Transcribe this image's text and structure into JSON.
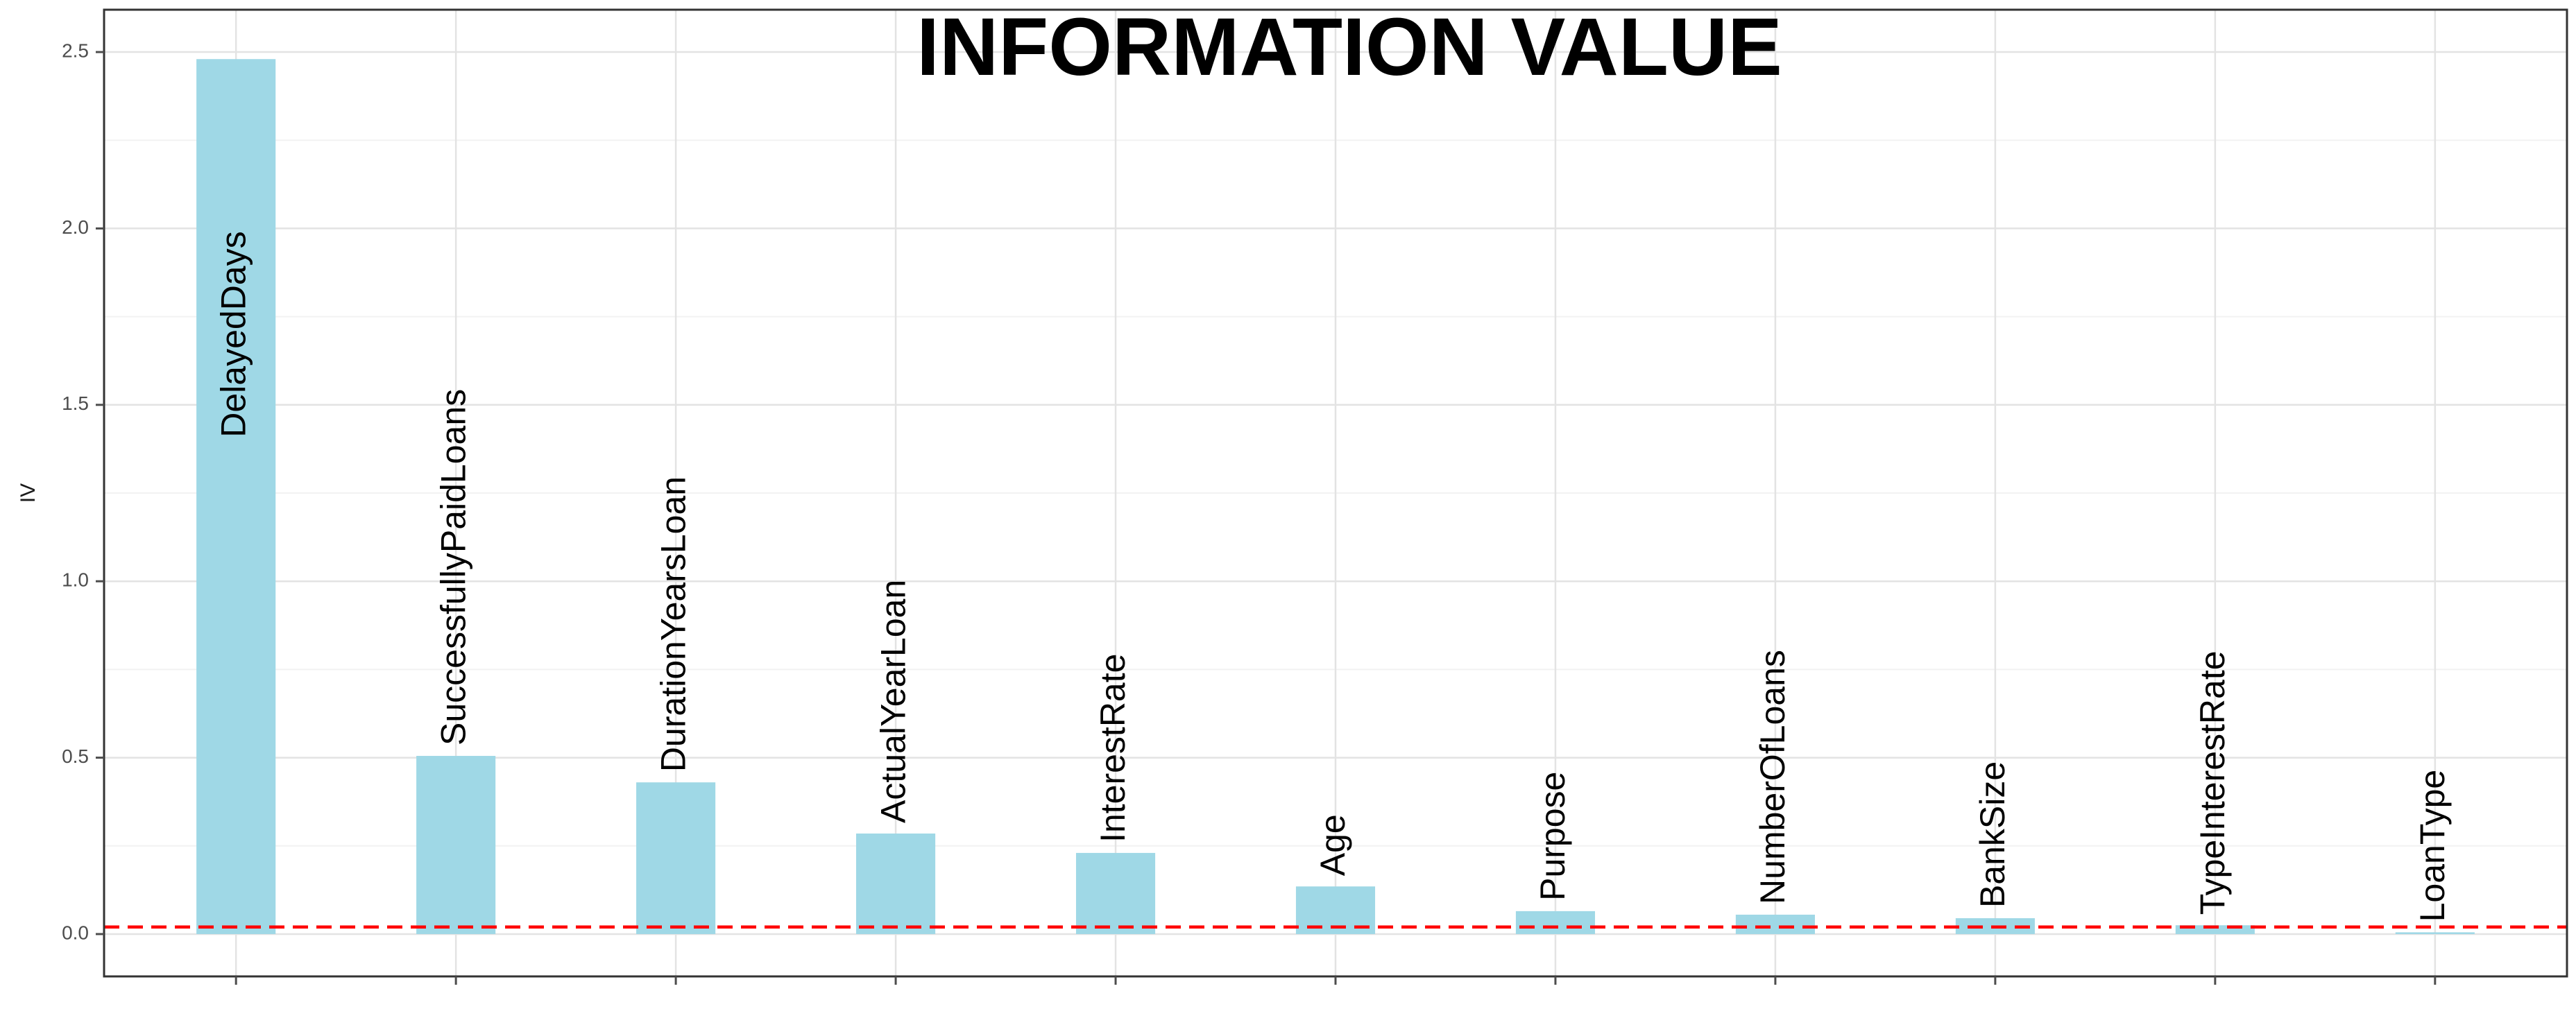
{
  "chart_data": {
    "type": "bar",
    "title": "INFORMATION VALUE",
    "xlabel": "",
    "ylabel": "IV",
    "categories": [
      "DelayedDays",
      "SuccessfullyPaidLoans",
      "DurationYearsLoan",
      "ActualYearLoan",
      "InterestRate",
      "Age",
      "Purpose",
      "NumberOfLoans",
      "BankSize",
      "TypeInterestRate",
      "LoanType"
    ],
    "values": [
      2.48,
      0.505,
      0.43,
      0.285,
      0.23,
      0.135,
      0.065,
      0.055,
      0.045,
      0.025,
      0.005
    ],
    "ylim": [
      -0.12,
      2.62
    ],
    "yticks": [
      "0.0",
      "0.5",
      "1.0",
      "1.5",
      "2.0",
      "2.5"
    ],
    "threshold": 0.02,
    "grid": true,
    "bar_labels_rotated": true,
    "colors": {
      "bar": "#9fd8e6",
      "threshold_line": "#ff0000",
      "grid_major": "#e3e3e3",
      "grid_minor": "#f2f2f2",
      "panel_border": "#333333",
      "tick": "#4d4d4d"
    }
  }
}
